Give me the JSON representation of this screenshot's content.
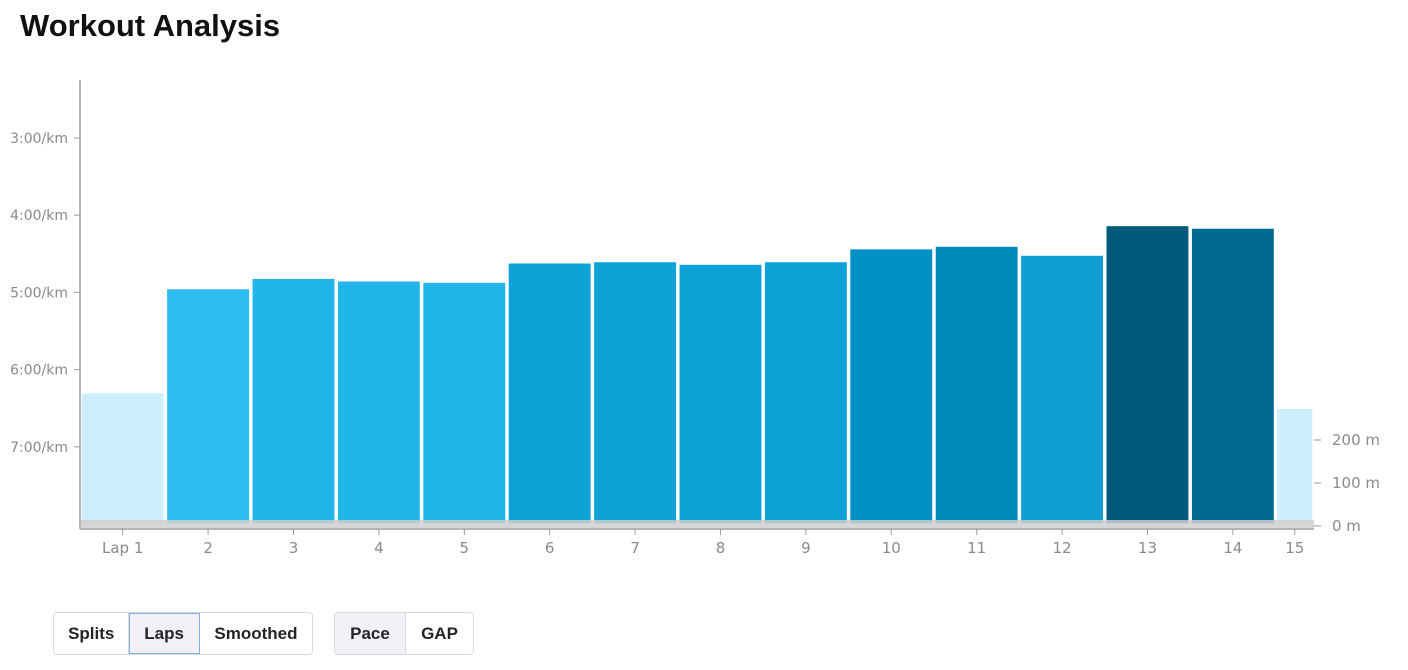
{
  "page_title": "Workout Analysis",
  "chart_data": {
    "type": "bar",
    "categories": [
      "Lap 1",
      "2",
      "3",
      "4",
      "5",
      "6",
      "7",
      "8",
      "9",
      "10",
      "11",
      "12",
      "13",
      "14",
      "15"
    ],
    "values": [
      "6:18/km",
      "4:57/km",
      "4:49/km",
      "4:51/km",
      "4:52/km",
      "4:37/km",
      "4:36/km",
      "4:38/km",
      "4:36/km",
      "4:26/km",
      "4:24/km",
      "4:31/km",
      "4:08/km",
      "4:10/km",
      "6:30/km"
    ],
    "pace_seconds_per_km": [
      378,
      297,
      289,
      291,
      292,
      277,
      276,
      278,
      276,
      266,
      264,
      271,
      248,
      250,
      390
    ],
    "lap_distance_units": [
      1,
      1,
      1,
      1,
      1,
      1,
      1,
      1,
      1,
      1,
      1,
      1,
      1,
      1,
      0.45
    ],
    "bar_colors": [
      "#cdeefc",
      "#2ebcf0",
      "#22b5ea",
      "#22b5ea",
      "#22b5ea",
      "#0fa2d6",
      "#0fa2d6",
      "#0fa2d6",
      "#0fa2d6",
      "#0090c4",
      "#008bbd",
      "#0f9fd3",
      "#005a7a",
      "#006a91",
      "#cdeefc"
    ],
    "y_axis": {
      "ticks": [
        "3:00/km",
        "4:00/km",
        "5:00/km",
        "6:00/km",
        "7:00/km"
      ],
      "tick_seconds": [
        180,
        240,
        300,
        360,
        420
      ],
      "range_seconds_per_km": [
        135,
        480
      ]
    },
    "elevation_axis": {
      "ticks": [
        "200 m",
        "100 m",
        "0 m"
      ],
      "tick_values": [
        200,
        100,
        0
      ]
    },
    "xlabel": "",
    "ylabel": ""
  },
  "controls": {
    "view_group": [
      {
        "label": "Splits",
        "selected": false
      },
      {
        "label": "Laps",
        "selected": true
      },
      {
        "label": "Smoothed",
        "selected": false
      }
    ],
    "metric_group": [
      {
        "label": "Pace",
        "selected": true
      },
      {
        "label": "GAP",
        "selected": false
      }
    ]
  }
}
